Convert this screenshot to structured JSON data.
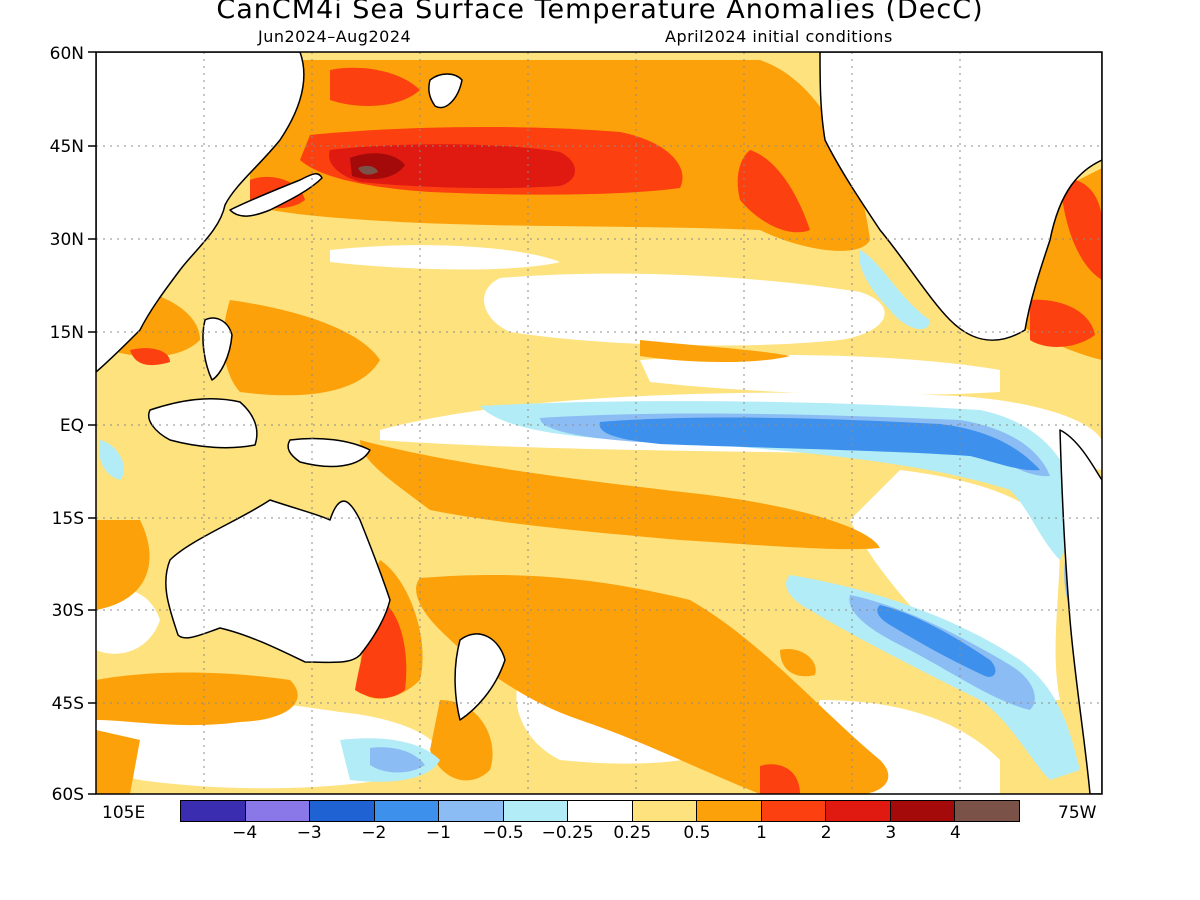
{
  "title": "CanCM4i Sea Surface Temperature Anomalies (DecC)",
  "subtitle_left": "Jun2024–Aug2024",
  "subtitle_right": "April2024 initial conditions",
  "lat_labels": [
    "60N",
    "45N",
    "30N",
    "15N",
    "EQ",
    "15S",
    "30S",
    "45S",
    "60S"
  ],
  "lon_labels": {
    "left": "105E",
    "right": "75W"
  },
  "colors": {
    "neg4": "#3a2db0",
    "neg3": "#8a78e8",
    "neg2": "#1e62d4",
    "neg1": "#3d90ec",
    "neg05": "#8cbcf4",
    "neg025": "#b2ecf6",
    "zero": "#ffffff",
    "pos025": "#fde27e",
    "pos05": "#fca10a",
    "pos1": "#fc4010",
    "pos2": "#e01a10",
    "pos3": "#a40a0a",
    "pos4": "#7a5248",
    "land": "#ffffff"
  },
  "colorbar": {
    "colors": [
      "#3a2db0",
      "#8a78e8",
      "#1e62d4",
      "#3d90ec",
      "#8cbcf4",
      "#b2ecf6",
      "#ffffff",
      "#fde27e",
      "#fca10a",
      "#fc4010",
      "#e01a10",
      "#a40a0a",
      "#7a5248"
    ],
    "tick_labels": [
      "−4",
      "−3",
      "−2",
      "−1",
      "−0.5",
      "−0.25",
      "0.25",
      "0.5",
      "1",
      "2",
      "3",
      "4"
    ]
  }
}
